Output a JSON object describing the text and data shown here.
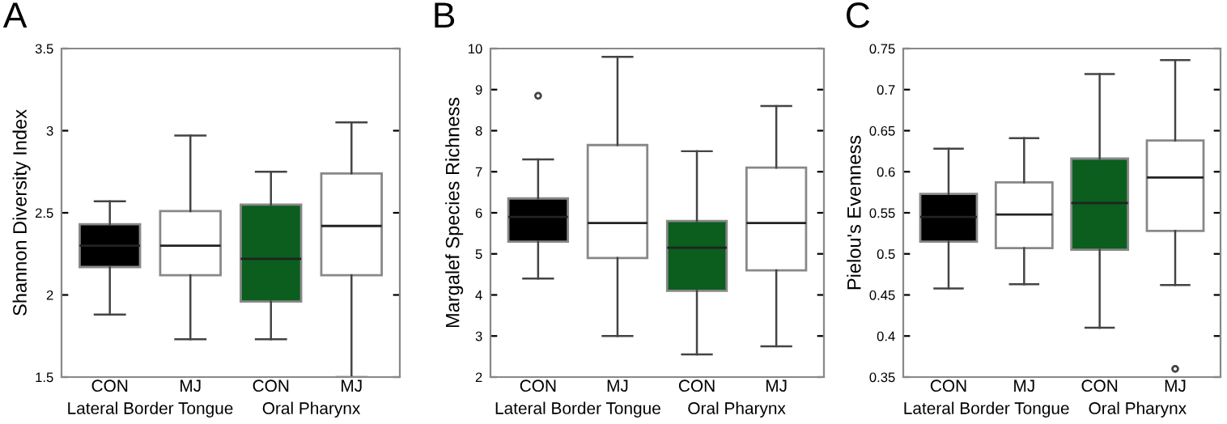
{
  "chart_data": [
    {
      "type": "box",
      "title": "A",
      "ylabel": "Shannon Diversity Index",
      "categories": [
        "CON",
        "MJ",
        "CON",
        "MJ"
      ],
      "annotations": [
        "Lateral Border Tongue",
        "Oral Pharynx"
      ],
      "colors": [
        "#000000",
        "#ffffff",
        "#0b5e1e",
        "#ffffff"
      ],
      "ylim": [
        1.5,
        3.5
      ],
      "yticks": [
        1.5,
        2,
        2.5,
        3,
        3.5
      ],
      "boxes": [
        {
          "low": 1.88,
          "q1": 2.17,
          "median": 2.3,
          "q3": 2.43,
          "high": 2.57
        },
        {
          "low": 1.73,
          "q1": 2.12,
          "median": 2.3,
          "q3": 2.51,
          "high": 2.97
        },
        {
          "low": 1.73,
          "q1": 1.96,
          "median": 2.22,
          "q3": 2.55,
          "high": 2.75
        },
        {
          "low": 1.5,
          "q1": 2.12,
          "median": 2.42,
          "q3": 2.74,
          "high": 3.05
        }
      ]
    },
    {
      "type": "box",
      "title": "B",
      "ylabel": "Margalef Species Richness",
      "categories": [
        "CON",
        "MJ",
        "CON",
        "MJ"
      ],
      "annotations": [
        "Lateral Border Tongue",
        "Oral Pharynx"
      ],
      "colors": [
        "#000000",
        "#ffffff",
        "#0b5e1e",
        "#ffffff"
      ],
      "ylim": [
        2,
        10
      ],
      "yticks": [
        2,
        3,
        4,
        5,
        6,
        7,
        8,
        9,
        10
      ],
      "boxes": [
        {
          "low": 4.4,
          "q1": 5.3,
          "median": 5.9,
          "q3": 6.35,
          "high": 7.3,
          "outliers": [
            8.85
          ]
        },
        {
          "low": 3.0,
          "q1": 4.9,
          "median": 5.75,
          "q3": 7.65,
          "high": 9.8
        },
        {
          "low": 2.55,
          "q1": 4.1,
          "median": 5.15,
          "q3": 5.8,
          "high": 7.5
        },
        {
          "low": 2.75,
          "q1": 4.6,
          "median": 5.75,
          "q3": 7.1,
          "high": 8.6
        }
      ]
    },
    {
      "type": "box",
      "title": "C",
      "ylabel": "Pielou's Evenness",
      "categories": [
        "CON",
        "MJ",
        "CON",
        "MJ"
      ],
      "annotations": [
        "Lateral Border Tongue",
        "Oral Pharynx"
      ],
      "colors": [
        "#000000",
        "#ffffff",
        "#0b5e1e",
        "#ffffff"
      ],
      "ylim": [
        0.35,
        0.75
      ],
      "yticks": [
        0.35,
        0.4,
        0.45,
        0.5,
        0.55,
        0.6,
        0.65,
        0.7,
        0.75
      ],
      "boxes": [
        {
          "low": 0.458,
          "q1": 0.515,
          "median": 0.545,
          "q3": 0.573,
          "high": 0.628
        },
        {
          "low": 0.463,
          "q1": 0.507,
          "median": 0.548,
          "q3": 0.587,
          "high": 0.641
        },
        {
          "low": 0.41,
          "q1": 0.505,
          "median": 0.562,
          "q3": 0.616,
          "high": 0.719
        },
        {
          "low": 0.462,
          "q1": 0.528,
          "median": 0.593,
          "q3": 0.638,
          "high": 0.736,
          "outliers": [
            0.36
          ]
        }
      ]
    }
  ]
}
